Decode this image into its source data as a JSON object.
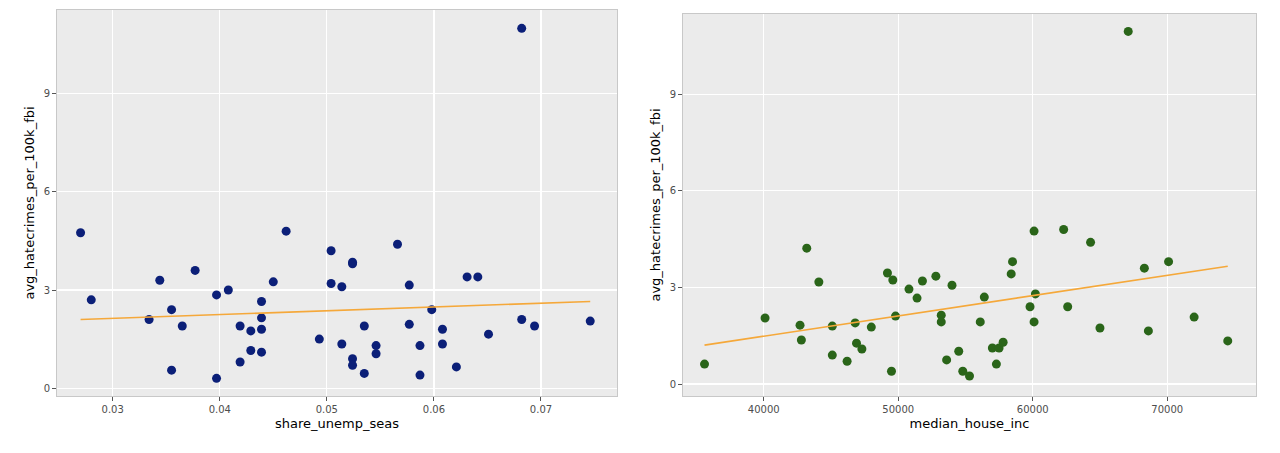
{
  "chart_data": [
    {
      "type": "scatter",
      "xlabel": "share_unemp_seas",
      "ylabel": "avg_hatecrimes_per_100k_fbi",
      "xlim": [
        0.0248,
        0.0771
      ],
      "ylim": [
        -0.24,
        11.56
      ],
      "xticks": [
        0.03,
        0.04,
        0.05,
        0.06,
        0.07
      ],
      "yticks": [
        0,
        3,
        6,
        9
      ],
      "grid": true,
      "series": [
        {
          "type": "scatter",
          "marker": "circle",
          "color": "#0b1f78",
          "x": [
            0.027,
            0.028,
            0.0334,
            0.0344,
            0.0355,
            0.0355,
            0.0365,
            0.0377,
            0.0397,
            0.0397,
            0.0408,
            0.0419,
            0.0419,
            0.0429,
            0.0429,
            0.0439,
            0.0439,
            0.0439,
            0.0439,
            0.045,
            0.0462,
            0.0493,
            0.0504,
            0.0504,
            0.0514,
            0.0514,
            0.0524,
            0.0524,
            0.0524,
            0.0524,
            0.0535,
            0.0535,
            0.0546,
            0.0546,
            0.0566,
            0.0577,
            0.0577,
            0.0587,
            0.0587,
            0.0598,
            0.0608,
            0.0608,
            0.0621,
            0.0631,
            0.0641,
            0.0651,
            0.0682,
            0.0682,
            0.0694,
            0.0746
          ],
          "values": [
            4.75,
            2.7,
            2.1,
            3.3,
            2.4,
            0.55,
            1.9,
            3.6,
            2.85,
            0.3,
            3.0,
            1.9,
            0.8,
            1.75,
            1.15,
            2.65,
            1.8,
            2.15,
            1.1,
            3.25,
            4.8,
            1.5,
            4.2,
            3.2,
            3.1,
            1.35,
            3.85,
            3.8,
            0.9,
            0.7,
            1.9,
            0.45,
            1.3,
            1.05,
            4.4,
            3.15,
            1.95,
            1.3,
            0.4,
            2.4,
            1.8,
            1.35,
            0.65,
            3.4,
            3.4,
            1.65,
            11.0,
            2.1,
            1.9,
            2.05
          ]
        },
        {
          "type": "line",
          "line_style": "solid",
          "color": "#f5a83a",
          "x": [
            0.027,
            0.0746
          ],
          "values": [
            2.1,
            2.65
          ]
        }
      ]
    },
    {
      "type": "scatter",
      "xlabel": "median_house_inc",
      "ylabel": "avg_hatecrimes_per_100k_fbi",
      "xlim": [
        34000,
        76600
      ],
      "ylim": [
        -0.37,
        11.49
      ],
      "xticks": [
        40000,
        50000,
        60000,
        70000
      ],
      "yticks": [
        0,
        3,
        6,
        9
      ],
      "grid": true,
      "series": [
        {
          "type": "scatter",
          "marker": "circle",
          "color": "#2a6519",
          "x": [
            35600,
            40100,
            42700,
            42800,
            43200,
            44100,
            45100,
            45100,
            46200,
            46800,
            46900,
            47300,
            48000,
            49200,
            49500,
            49600,
            49800,
            50800,
            51400,
            51800,
            52800,
            53200,
            53200,
            53600,
            54000,
            54500,
            54800,
            55300,
            56100,
            56400,
            57000,
            57300,
            57500,
            57800,
            58400,
            58500,
            59800,
            60100,
            60100,
            60200,
            62300,
            62600,
            64300,
            65000,
            67100,
            68300,
            68600,
            70100,
            72000,
            74500
          ],
          "values": [
            0.62,
            2.05,
            1.83,
            1.37,
            4.22,
            3.17,
            1.8,
            0.9,
            0.71,
            1.9,
            1.27,
            1.09,
            1.77,
            3.45,
            0.4,
            3.23,
            2.11,
            2.95,
            2.67,
            3.2,
            3.35,
            2.14,
            1.93,
            0.75,
            3.07,
            1.02,
            0.4,
            0.25,
            1.93,
            2.7,
            1.12,
            0.62,
            1.12,
            1.3,
            3.42,
            3.8,
            2.4,
            4.75,
            1.93,
            2.8,
            4.8,
            2.4,
            4.4,
            1.74,
            10.95,
            3.6,
            1.65,
            3.8,
            2.08,
            1.34
          ]
        },
        {
          "type": "line",
          "line_style": "solid",
          "color": "#f5a83a",
          "x": [
            35600,
            74500
          ],
          "values": [
            1.21,
            3.66
          ]
        }
      ]
    }
  ]
}
